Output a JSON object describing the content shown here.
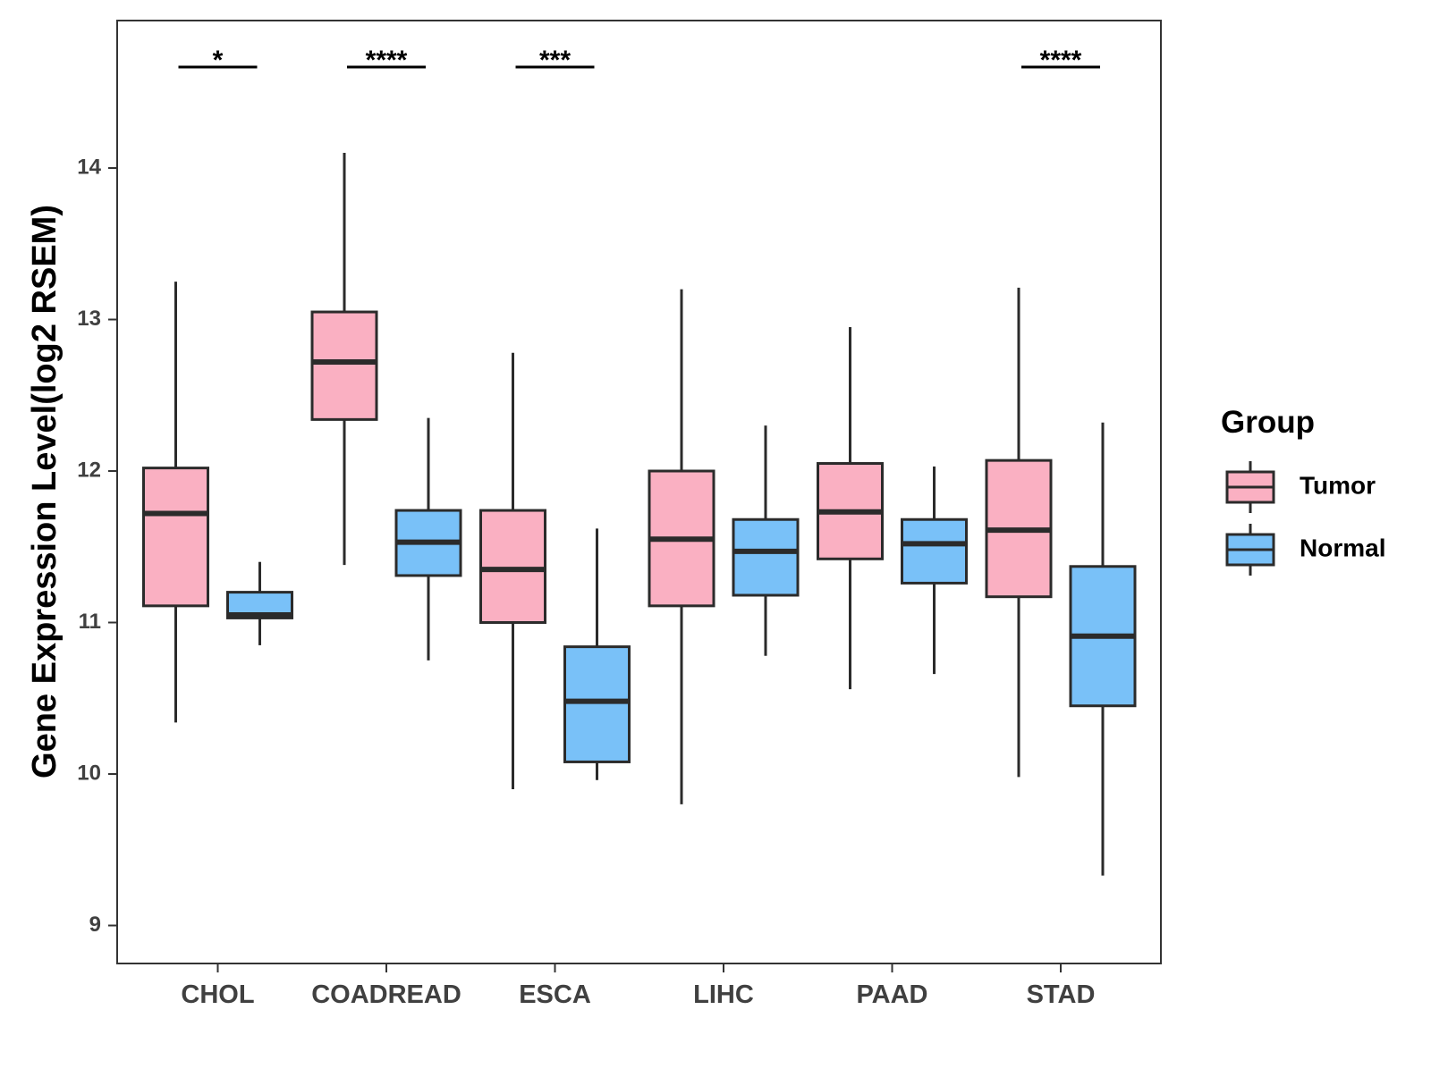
{
  "chart_data": {
    "type": "boxplot",
    "title": "",
    "xlabel": "",
    "ylabel": "Gene Expression Level(log2 RSEM)",
    "ylim": [
      8.75,
      15.0
    ],
    "yticks": [
      9,
      10,
      11,
      12,
      13,
      14
    ],
    "categories": [
      "CHOL",
      "COADREAD",
      "ESCA",
      "LIHC",
      "PAAD",
      "STAD"
    ],
    "series": [
      {
        "name": "Tumor",
        "color": "#FAB0C2",
        "boxes": [
          {
            "category": "CHOL",
            "whisker_low": 10.34,
            "q1": 11.11,
            "median": 11.72,
            "q3": 12.02,
            "whisker_high": 13.25
          },
          {
            "category": "COADREAD",
            "whisker_low": 11.38,
            "q1": 12.34,
            "median": 12.72,
            "q3": 13.05,
            "whisker_high": 14.1
          },
          {
            "category": "ESCA",
            "whisker_low": 9.9,
            "q1": 11.0,
            "median": 11.35,
            "q3": 11.74,
            "whisker_high": 12.78
          },
          {
            "category": "LIHC",
            "whisker_low": 9.8,
            "q1": 11.11,
            "median": 11.55,
            "q3": 12.0,
            "whisker_high": 13.2
          },
          {
            "category": "PAAD",
            "whisker_low": 10.56,
            "q1": 11.42,
            "median": 11.73,
            "q3": 12.05,
            "whisker_high": 12.95
          },
          {
            "category": "STAD",
            "whisker_low": 9.98,
            "q1": 11.17,
            "median": 11.61,
            "q3": 12.07,
            "whisker_high": 13.21
          }
        ]
      },
      {
        "name": "Normal",
        "color": "#79C1F8",
        "boxes": [
          {
            "category": "CHOL",
            "whisker_low": 10.85,
            "q1": 11.03,
            "median": 11.05,
            "q3": 11.2,
            "whisker_high": 11.4
          },
          {
            "category": "COADREAD",
            "whisker_low": 10.75,
            "q1": 11.31,
            "median": 11.53,
            "q3": 11.74,
            "whisker_high": 12.35
          },
          {
            "category": "ESCA",
            "whisker_low": 9.96,
            "q1": 10.08,
            "median": 10.48,
            "q3": 10.84,
            "whisker_high": 11.62
          },
          {
            "category": "LIHC",
            "whisker_low": 10.78,
            "q1": 11.18,
            "median": 11.47,
            "q3": 11.68,
            "whisker_high": 12.3
          },
          {
            "category": "PAAD",
            "whisker_low": 10.66,
            "q1": 11.26,
            "median": 11.52,
            "q3": 11.68,
            "whisker_high": 12.03
          },
          {
            "category": "STAD",
            "whisker_low": 9.33,
            "q1": 10.45,
            "median": 10.91,
            "q3": 11.37,
            "whisker_high": 12.32
          }
        ]
      }
    ],
    "significance": [
      {
        "category": "CHOL",
        "label": "*"
      },
      {
        "category": "COADREAD",
        "label": "****"
      },
      {
        "category": "ESCA",
        "label": "***"
      },
      {
        "category": "STAD",
        "label": "****"
      }
    ],
    "legend": {
      "title": "Group",
      "position": "right",
      "items": [
        "Tumor",
        "Normal"
      ]
    },
    "grid": false
  }
}
